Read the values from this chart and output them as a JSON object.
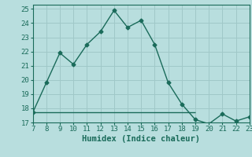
{
  "x": [
    7,
    8,
    9,
    10,
    11,
    12,
    13,
    14,
    15,
    16,
    17,
    18,
    19,
    20,
    21,
    22,
    23
  ],
  "y": [
    17.7,
    19.8,
    21.9,
    21.1,
    22.5,
    23.4,
    24.9,
    23.7,
    24.2,
    22.5,
    19.8,
    18.3,
    17.2,
    16.9,
    17.6,
    17.1,
    17.4
  ],
  "hline_y": 17.7,
  "hline_x_start": 7,
  "hline_x_end": 19,
  "hline_y2": 17.5,
  "hline_x2_start": 7,
  "hline_x2_end": 19,
  "line_color": "#1a6b5a",
  "bg_color": "#b8dede",
  "grid_color": "#a0c8c8",
  "xlabel": "Humidex (Indice chaleur)",
  "ylim": [
    17,
    25.3
  ],
  "xlim": [
    7,
    23
  ],
  "yticks": [
    17,
    18,
    19,
    20,
    21,
    22,
    23,
    24,
    25
  ],
  "xticks": [
    7,
    8,
    9,
    10,
    11,
    12,
    13,
    14,
    15,
    16,
    17,
    18,
    19,
    20,
    21,
    22,
    23
  ],
  "marker": "D",
  "markersize": 2.5,
  "linewidth": 1.0,
  "xlabel_fontsize": 7.5,
  "tick_fontsize": 6.5,
  "hline_color": "#1a6b5a",
  "hline_linewidth": 1.0
}
